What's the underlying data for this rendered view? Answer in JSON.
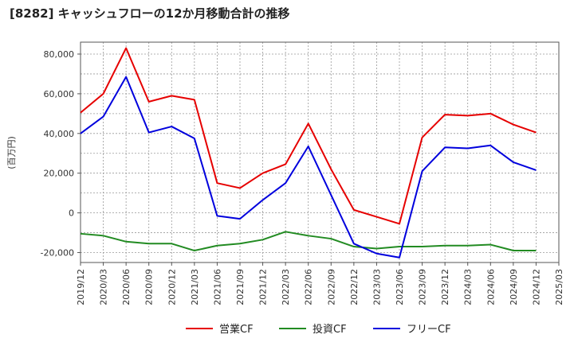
{
  "chart_data": {
    "type": "line",
    "title": "[8282]  キャッシュフローの12か月移動合計の推移",
    "ylabel": "(百万円)",
    "xlabel": "",
    "ylim": [
      -25000,
      86000
    ],
    "yticks": [
      -20000,
      0,
      20000,
      40000,
      60000,
      80000
    ],
    "ytick_labels": [
      "-20,000",
      "0",
      "20,000",
      "40,000",
      "60,000",
      "80,000"
    ],
    "categories": [
      "2019/12",
      "2020/03",
      "2020/06",
      "2020/09",
      "2020/12",
      "2021/03",
      "2021/06",
      "2021/09",
      "2021/12",
      "2022/03",
      "2022/06",
      "2022/09",
      "2022/12",
      "2023/03",
      "2023/06",
      "2023/09",
      "2023/12",
      "2024/03",
      "2024/06",
      "2024/09",
      "2024/12",
      "2025/03"
    ],
    "grid": true,
    "legend_position": "bottom",
    "series": [
      {
        "name": "営業CF",
        "color": "#e60000",
        "values": [
          50500,
          60000,
          83000,
          56000,
          59000,
          57000,
          15000,
          12500,
          20000,
          24500,
          45000,
          22000,
          1500,
          -2000,
          -5500,
          38000,
          49500,
          49000,
          50000,
          44500,
          40500,
          null
        ]
      },
      {
        "name": "投資CF",
        "color": "#228b22",
        "values": [
          -10500,
          -11500,
          -14500,
          -15500,
          -15500,
          -19000,
          -16500,
          -15500,
          -13500,
          -9500,
          -11500,
          -13000,
          -17000,
          -18000,
          -17000,
          -17000,
          -16500,
          -16500,
          -16000,
          -19000,
          -19000,
          null
        ]
      },
      {
        "name": "フリーCF",
        "color": "#0000dd",
        "values": [
          40000,
          48500,
          68500,
          40500,
          43500,
          37500,
          -1500,
          -3000,
          6500,
          15000,
          33500,
          9000,
          -15500,
          -20500,
          -22500,
          21000,
          33000,
          32500,
          34000,
          25500,
          21500,
          null
        ]
      }
    ]
  }
}
